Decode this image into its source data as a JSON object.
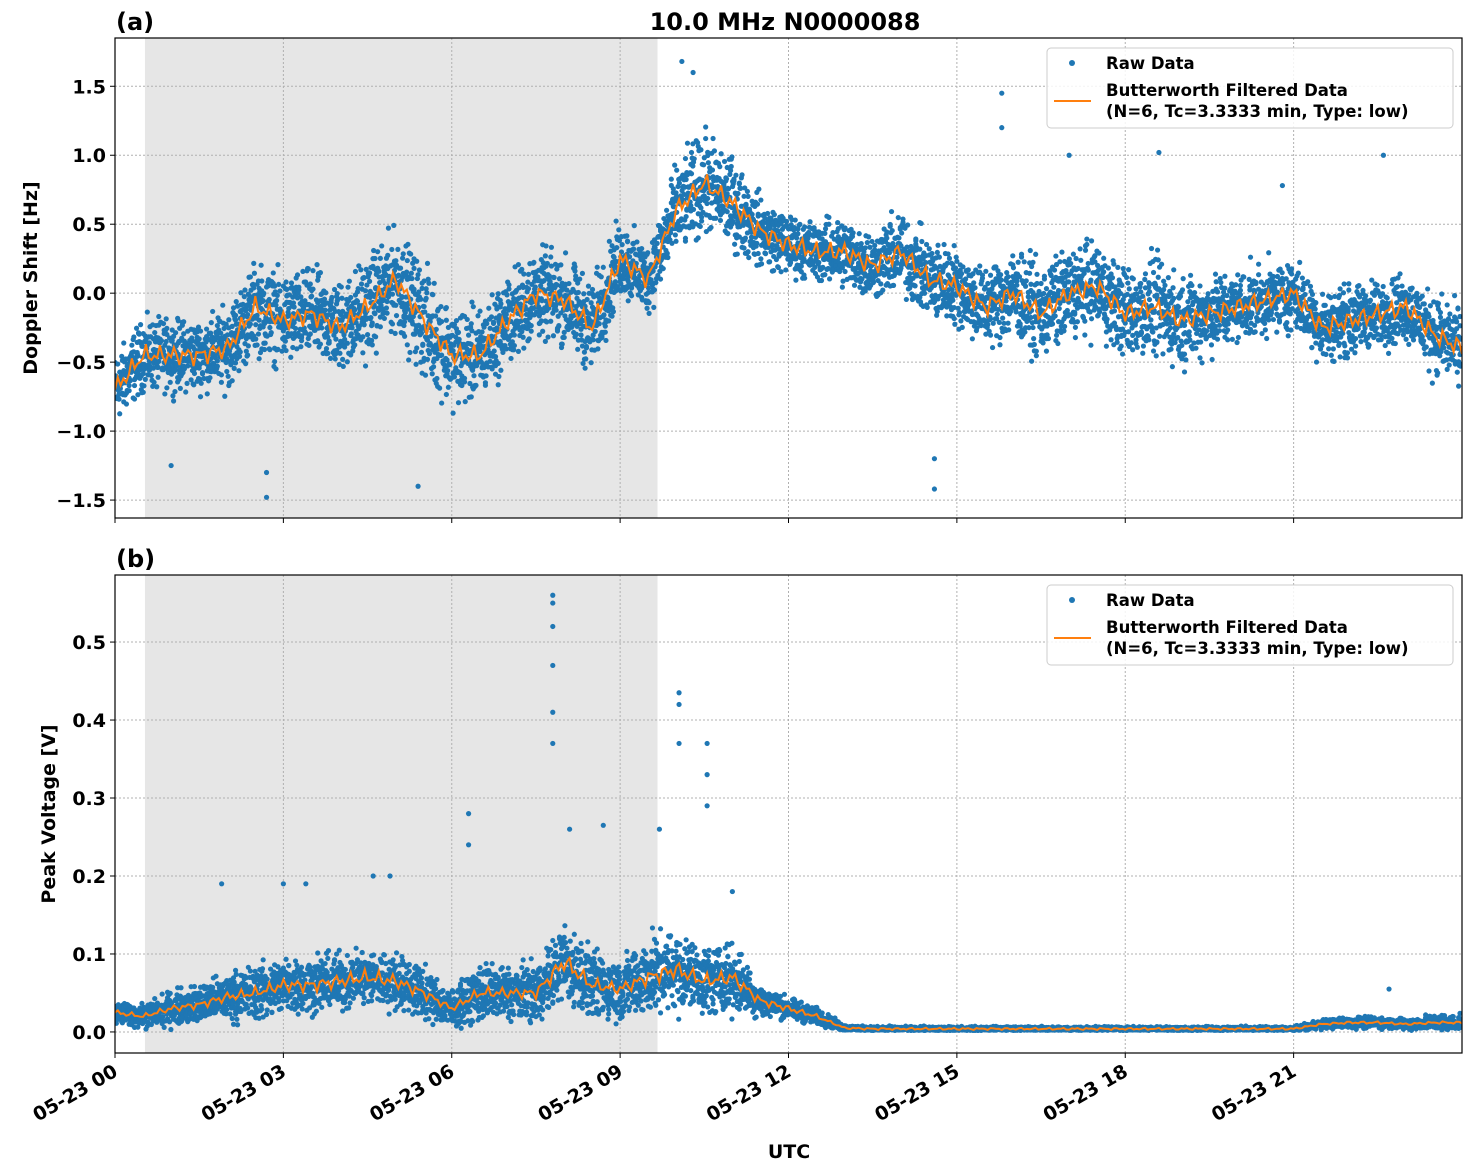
{
  "title": "10.0 MHz N0000088",
  "colors": {
    "raw": "#1f77b4",
    "filtered": "#ff7f0e",
    "shade": "#e6e6e6"
  },
  "chart_data": [
    {
      "type": "scatter",
      "panel_label": "(a)",
      "ylabel": "Doppler Shift [Hz]",
      "xlabel": "",
      "xlim_hours": [
        0,
        24
      ],
      "ylim": [
        -1.63,
        1.85
      ],
      "yticks": [
        -1.5,
        -1.0,
        -0.5,
        0.0,
        0.5,
        1.0,
        1.5
      ],
      "ytick_labels": [
        "−1.5",
        "−1.0",
        "−0.5",
        "0.0",
        "0.5",
        "1.0",
        "1.5"
      ],
      "grid": true,
      "legend_position": "top-right",
      "shaded_interval_utc": [
        "05-23 00:32",
        "05-23 09:40"
      ],
      "series": [
        {
          "name": "Raw Data",
          "kind": "points"
        },
        {
          "name": "Butterworth Filtered Data\n(N=6, Tc=3.3333 min, Type: low)",
          "kind": "line"
        }
      ],
      "legend": [
        "Raw Data",
        "Butterworth Filtered Data",
        "(N=6, Tc=3.3333 min, Type: low)"
      ],
      "time_step_hours": 0.5,
      "filtered": [
        -0.7,
        -0.45,
        -0.45,
        -0.45,
        -0.4,
        -0.1,
        -0.2,
        -0.15,
        -0.25,
        -0.1,
        0.1,
        -0.2,
        -0.45,
        -0.45,
        -0.2,
        0.0,
        -0.05,
        -0.25,
        0.25,
        0.1,
        0.6,
        0.8,
        0.65,
        0.45,
        0.35,
        0.3,
        0.3,
        0.2,
        0.3,
        0.1,
        0.05,
        -0.1,
        0.0,
        -0.15,
        0.0,
        0.05,
        -0.15,
        -0.1,
        -0.2,
        -0.15,
        -0.1,
        -0.05,
        0.0,
        -0.25,
        -0.2,
        -0.15,
        -0.1,
        -0.3,
        -0.4
      ],
      "raw_spread": [
        0.35,
        0.35,
        0.35,
        0.35,
        0.4,
        0.45,
        0.45,
        0.45,
        0.45,
        0.5,
        0.5,
        0.55,
        0.5,
        0.45,
        0.45,
        0.45,
        0.45,
        0.45,
        0.4,
        0.35,
        0.45,
        0.5,
        0.45,
        0.35,
        0.3,
        0.3,
        0.35,
        0.35,
        0.4,
        0.4,
        0.4,
        0.4,
        0.45,
        0.45,
        0.45,
        0.45,
        0.45,
        0.5,
        0.45,
        0.4,
        0.35,
        0.35,
        0.35,
        0.35,
        0.35,
        0.35,
        0.35,
        0.4,
        0.4
      ],
      "outliers": [
        [
          10.1,
          1.68
        ],
        [
          10.3,
          1.6
        ],
        [
          15.8,
          1.45
        ],
        [
          15.8,
          1.2
        ],
        [
          14.6,
          -1.42
        ],
        [
          14.6,
          -1.2
        ],
        [
          2.7,
          -1.48
        ],
        [
          2.7,
          -1.3
        ],
        [
          18.6,
          1.02
        ],
        [
          22.6,
          1.0
        ],
        [
          5.4,
          -1.4
        ],
        [
          1.0,
          -1.25
        ],
        [
          17.0,
          1.0
        ],
        [
          20.8,
          0.78
        ]
      ]
    },
    {
      "type": "scatter",
      "panel_label": "(b)",
      "ylabel": "Peak Voltage [V]",
      "xlabel": "UTC",
      "xlim_hours": [
        0,
        24
      ],
      "ylim": [
        -0.027,
        0.586
      ],
      "yticks": [
        0.0,
        0.1,
        0.2,
        0.3,
        0.4,
        0.5
      ],
      "ytick_labels": [
        "0.0",
        "0.1",
        "0.2",
        "0.3",
        "0.4",
        "0.5"
      ],
      "xtick_labels": [
        "05-23 00",
        "05-23 03",
        "05-23 06",
        "05-23 09",
        "05-23 12",
        "05-23 15",
        "05-23 18",
        "05-23 21"
      ],
      "xtick_hours": [
        0,
        3,
        6,
        9,
        12,
        15,
        18,
        21
      ],
      "grid": true,
      "legend_position": "top-right",
      "shaded_interval_utc": [
        "05-23 00:32",
        "05-23 09:40"
      ],
      "legend": [
        "Raw Data",
        "Butterworth Filtered Data",
        "(N=6, Tc=3.3333 min, Type: low)"
      ],
      "time_step_hours": 0.5,
      "filtered": [
        0.025,
        0.02,
        0.03,
        0.035,
        0.045,
        0.05,
        0.06,
        0.06,
        0.065,
        0.07,
        0.065,
        0.05,
        0.03,
        0.05,
        0.05,
        0.05,
        0.09,
        0.06,
        0.055,
        0.07,
        0.08,
        0.065,
        0.07,
        0.04,
        0.03,
        0.02,
        0.005,
        0.004,
        0.004,
        0.004,
        0.004,
        0.004,
        0.004,
        0.004,
        0.004,
        0.004,
        0.004,
        0.004,
        0.004,
        0.004,
        0.004,
        0.004,
        0.004,
        0.01,
        0.012,
        0.012,
        0.01,
        0.012,
        0.012
      ],
      "raw_spread": [
        0.02,
        0.02,
        0.03,
        0.035,
        0.04,
        0.05,
        0.05,
        0.05,
        0.05,
        0.05,
        0.05,
        0.045,
        0.035,
        0.05,
        0.05,
        0.05,
        0.07,
        0.06,
        0.055,
        0.07,
        0.07,
        0.06,
        0.06,
        0.03,
        0.02,
        0.015,
        0.006,
        0.004,
        0.004,
        0.004,
        0.004,
        0.004,
        0.004,
        0.004,
        0.004,
        0.004,
        0.004,
        0.004,
        0.004,
        0.004,
        0.004,
        0.004,
        0.004,
        0.008,
        0.01,
        0.01,
        0.01,
        0.015,
        0.012
      ],
      "outliers": [
        [
          7.8,
          0.56
        ],
        [
          7.8,
          0.55
        ],
        [
          7.8,
          0.52
        ],
        [
          7.8,
          0.47
        ],
        [
          7.8,
          0.41
        ],
        [
          7.8,
          0.37
        ],
        [
          10.05,
          0.435
        ],
        [
          10.05,
          0.42
        ],
        [
          10.05,
          0.37
        ],
        [
          10.55,
          0.37
        ],
        [
          10.55,
          0.33
        ],
        [
          10.55,
          0.29
        ],
        [
          6.3,
          0.28
        ],
        [
          6.3,
          0.24
        ],
        [
          8.7,
          0.265
        ],
        [
          8.1,
          0.26
        ],
        [
          9.7,
          0.26
        ],
        [
          1.9,
          0.19
        ],
        [
          3.4,
          0.19
        ],
        [
          4.6,
          0.2
        ],
        [
          4.9,
          0.2
        ],
        [
          3.0,
          0.19
        ],
        [
          11.0,
          0.18
        ],
        [
          22.7,
          0.055
        ]
      ]
    }
  ]
}
